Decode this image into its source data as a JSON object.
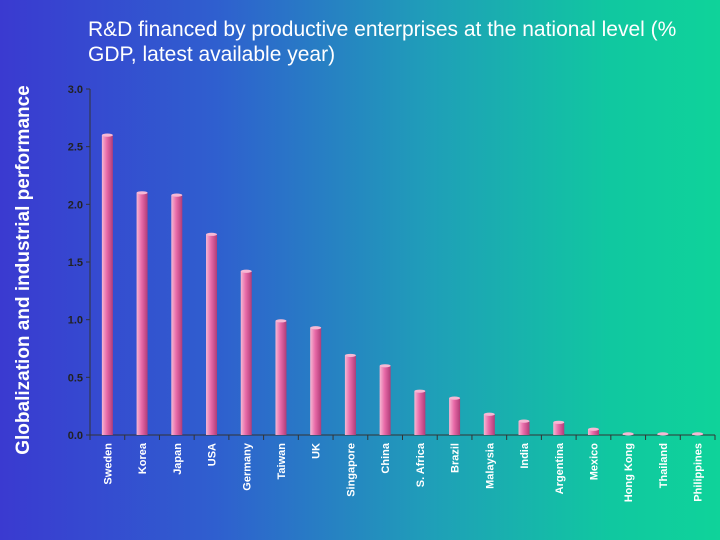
{
  "side_title": "Globalization and industrial performance",
  "colors": {
    "bar_light": "#f6b8d4",
    "bar_mid": "#e86aa8",
    "bar_dark": "#b03c78",
    "axis": "#333333",
    "tick_label": "#222222",
    "category_label": "#ffffff"
  },
  "chart_data": {
    "type": "bar",
    "title": "R&D financed by productive enterprises at the national level (% GDP, latest available year)",
    "xlabel": "",
    "ylabel": "",
    "ylim": [
      0,
      3.0
    ],
    "yticks": [
      "0.0",
      "0.5",
      "1.0",
      "1.5",
      "2.0",
      "2.5",
      "3.0"
    ],
    "grid": false,
    "categories": [
      "Sweden",
      "Korea",
      "Japan",
      "USA",
      "Germany",
      "Taiwan",
      "UK",
      "Singapore",
      "China",
      "S. Africa",
      "Brazil",
      "Malaysia",
      "India",
      "Argentina",
      "Mexico",
      "Hong Kong",
      "Thailand",
      "Philippines"
    ],
    "values": [
      2.6,
      2.1,
      2.08,
      1.74,
      1.42,
      0.99,
      0.93,
      0.69,
      0.6,
      0.38,
      0.32,
      0.18,
      0.12,
      0.11,
      0.05,
      0.01,
      0.01,
      0.01
    ]
  }
}
